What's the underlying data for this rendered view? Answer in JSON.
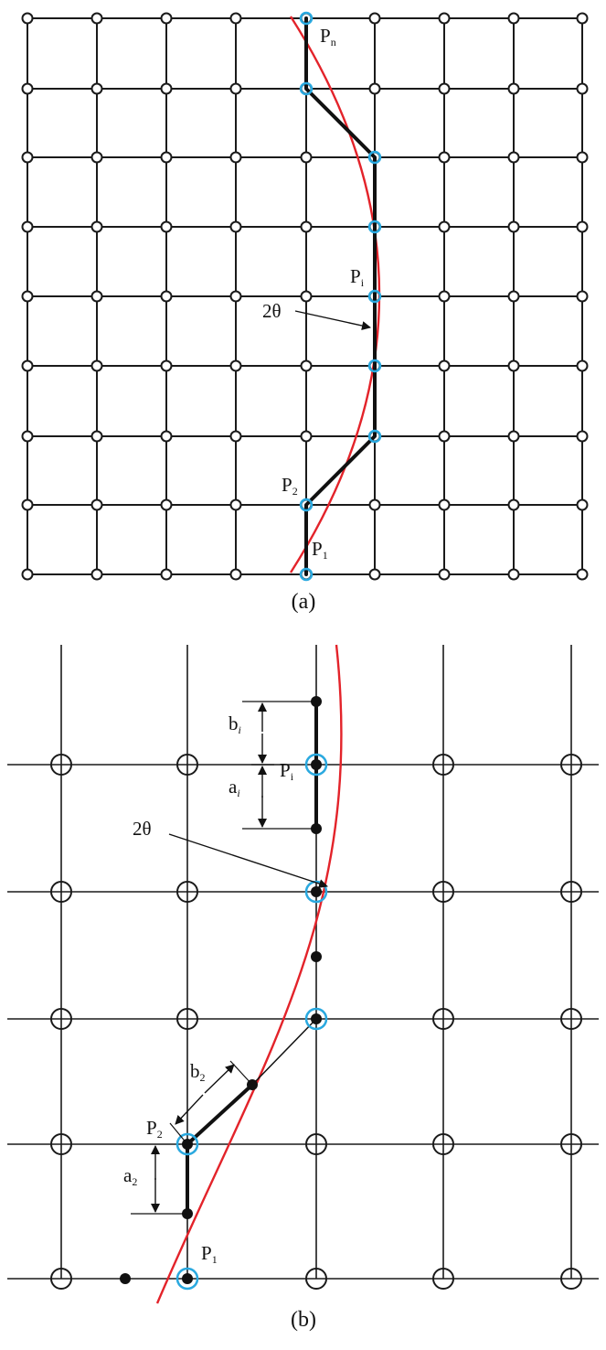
{
  "panel_a": {
    "caption": "(a)",
    "labels": {
      "pn": {
        "main": "P",
        "sub": "n"
      },
      "pi": {
        "main": "P",
        "sub": "i"
      },
      "p2": {
        "main": "P",
        "sub": "2"
      },
      "p1": {
        "main": "P",
        "sub": "1"
      },
      "theta": "2θ"
    }
  },
  "panel_b": {
    "caption": "(b)",
    "labels": {
      "bi": {
        "main": "b",
        "sub": "i"
      },
      "ai": {
        "main": "a",
        "sub": "i"
      },
      "pi": {
        "main": "P",
        "sub": "i"
      },
      "theta": "2θ",
      "b2": {
        "main": "b",
        "sub": "2"
      },
      "p2": {
        "main": "P",
        "sub": "2"
      },
      "a2": {
        "main": "a",
        "sub": "2"
      },
      "p1": {
        "main": "P",
        "sub": "1"
      }
    }
  },
  "colors": {
    "curve": "#e3232a",
    "highlight": "#29a9e0",
    "grid": "#1a1a1a"
  }
}
